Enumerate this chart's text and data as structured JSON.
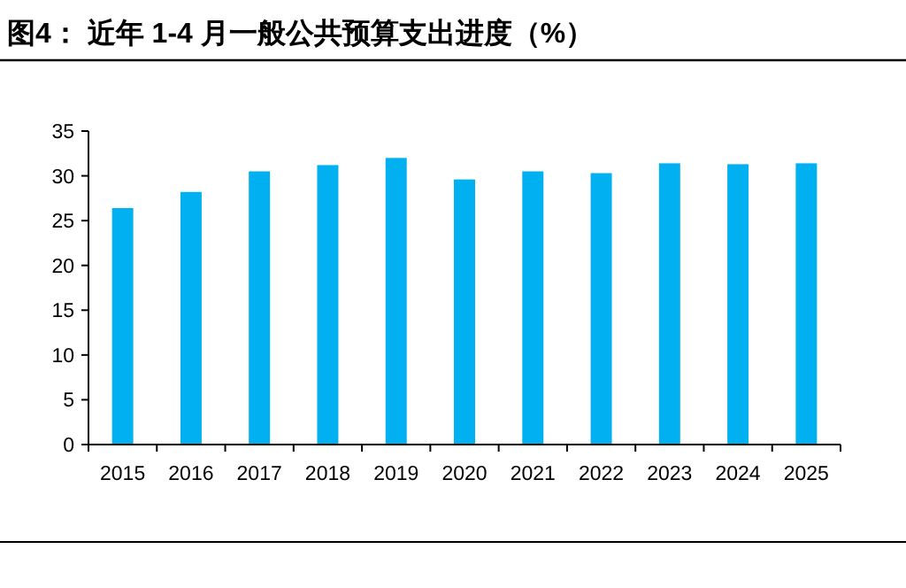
{
  "chart_data": {
    "type": "bar",
    "title": "图4：  近年 1-4 月一般公共预算支出进度（%）",
    "categories": [
      "2015",
      "2016",
      "2017",
      "2018",
      "2019",
      "2020",
      "2021",
      "2022",
      "2023",
      "2024",
      "2025"
    ],
    "values": [
      26.4,
      28.2,
      30.5,
      31.2,
      32.0,
      29.6,
      30.5,
      30.3,
      31.4,
      31.3,
      31.4
    ],
    "color": "#00b0f0",
    "ylim": [
      0,
      35
    ],
    "yticks": [
      0,
      5,
      10,
      15,
      20,
      25,
      30,
      35
    ]
  }
}
